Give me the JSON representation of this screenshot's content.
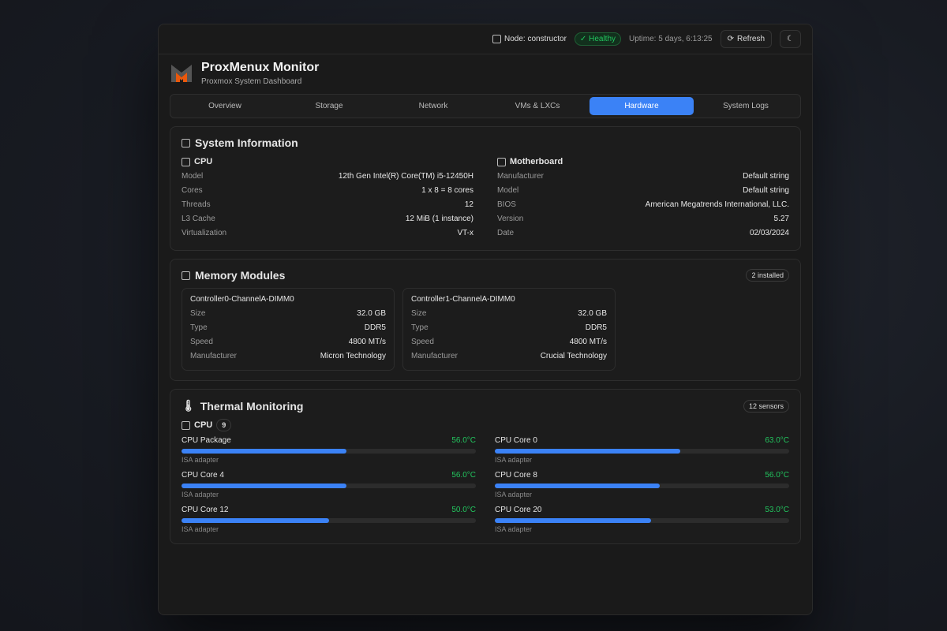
{
  "header": {
    "node_label": "Node: constructor",
    "health": "Healthy",
    "uptime": "Uptime: 5 days, 6:13:25",
    "refresh": "Refresh",
    "title": "ProxMenux Monitor",
    "subtitle": "Proxmox System Dashboard"
  },
  "tabs": [
    {
      "label": "Overview"
    },
    {
      "label": "Storage"
    },
    {
      "label": "Network"
    },
    {
      "label": "VMs & LXCs"
    },
    {
      "label": "Hardware",
      "active": true
    },
    {
      "label": "System Logs"
    }
  ],
  "sysinfo": {
    "title": "System Information",
    "cpu": {
      "title": "CPU",
      "rows": [
        {
          "k": "Model",
          "v": "12th Gen Intel(R) Core(TM) i5-12450H"
        },
        {
          "k": "Cores",
          "v": "1 x 8 = 8 cores"
        },
        {
          "k": "Threads",
          "v": "12"
        },
        {
          "k": "L3 Cache",
          "v": "12 MiB (1 instance)"
        },
        {
          "k": "Virtualization",
          "v": "VT-x"
        }
      ]
    },
    "mb": {
      "title": "Motherboard",
      "rows": [
        {
          "k": "Manufacturer",
          "v": "Default string"
        },
        {
          "k": "Model",
          "v": "Default string"
        },
        {
          "k": "BIOS",
          "v": "American Megatrends International, LLC."
        },
        {
          "k": "Version",
          "v": "5.27"
        },
        {
          "k": "Date",
          "v": "02/03/2024"
        }
      ]
    }
  },
  "memory": {
    "title": "Memory Modules",
    "badge": "2 installed",
    "modules": [
      {
        "name": "Controller0-ChannelA-DIMM0",
        "size_label": "Size",
        "size": "32.0 GB",
        "type_label": "Type",
        "type": "DDR5",
        "speed_label": "Speed",
        "speed": "4800 MT/s",
        "mfr_label": "Manufacturer",
        "mfr": "Micron Technology"
      },
      {
        "name": "Controller1-ChannelA-DIMM0",
        "size_label": "Size",
        "size": "32.0 GB",
        "type_label": "Type",
        "type": "DDR5",
        "speed_label": "Speed",
        "speed": "4800 MT/s",
        "mfr_label": "Manufacturer",
        "mfr": "Crucial Technology"
      }
    ]
  },
  "thermal": {
    "title": "Thermal Monitoring",
    "badge": "12 sensors",
    "group": "CPU",
    "group_count": "9",
    "sensors": [
      {
        "name": "CPU Package",
        "temp": "56.0°C",
        "percent": 56,
        "src": "ISA adapter"
      },
      {
        "name": "CPU Core 0",
        "temp": "63.0°C",
        "percent": 63,
        "src": "ISA adapter"
      },
      {
        "name": "CPU Core 4",
        "temp": "56.0°C",
        "percent": 56,
        "src": "ISA adapter"
      },
      {
        "name": "CPU Core 8",
        "temp": "56.0°C",
        "percent": 56,
        "src": "ISA adapter"
      },
      {
        "name": "CPU Core 12",
        "temp": "50.0°C",
        "percent": 50,
        "src": "ISA adapter"
      },
      {
        "name": "CPU Core 20",
        "temp": "53.0°C",
        "percent": 53,
        "src": "ISA adapter"
      }
    ]
  },
  "colors": {
    "accent": "#3b82f6",
    "ok": "#22c55e"
  }
}
